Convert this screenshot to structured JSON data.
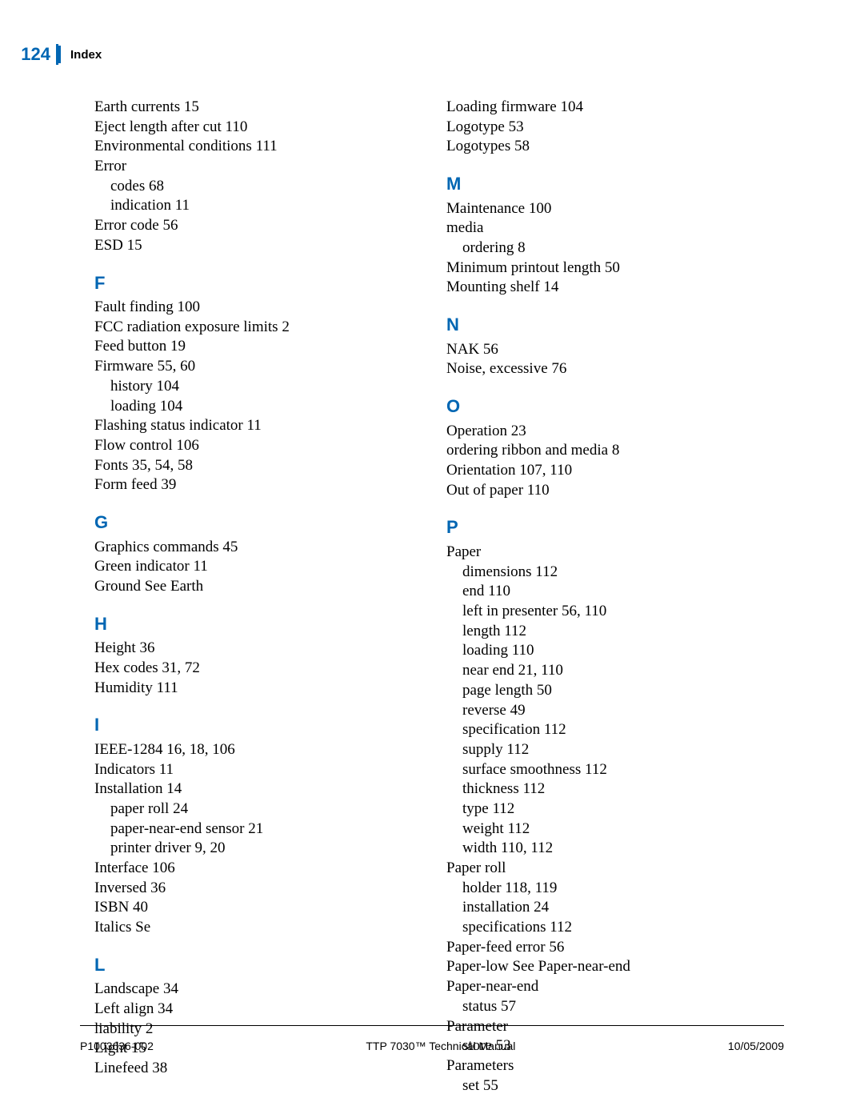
{
  "header": {
    "page_number": "124",
    "title": "Index"
  },
  "colors": {
    "brand_blue": "#0066b3",
    "text": "#000000",
    "background": "#ffffff"
  },
  "typography": {
    "body_font": "Times New Roman serif",
    "heading_font": "Arial sans-serif",
    "body_size_pt": 14,
    "letter_size_pt": 16,
    "header_page_size_pt": 16,
    "header_title_size_pt": 11,
    "footer_size_pt": 10
  },
  "left_column": [
    {
      "type": "entry",
      "text": "Earth currents 15"
    },
    {
      "type": "entry",
      "text": "Eject length after cut 110"
    },
    {
      "type": "entry",
      "text": "Environmental conditions 111"
    },
    {
      "type": "entry",
      "text": "Error"
    },
    {
      "type": "sub",
      "text": "codes 68"
    },
    {
      "type": "sub",
      "text": "indication 11"
    },
    {
      "type": "entry",
      "text": "Error code 56"
    },
    {
      "type": "entry",
      "text": "ESD 15"
    },
    {
      "type": "letter",
      "text": "F"
    },
    {
      "type": "entry",
      "text": "Fault finding 100"
    },
    {
      "type": "entry",
      "text": "FCC radiation exposure limits 2"
    },
    {
      "type": "entry",
      "text": "Feed button 19"
    },
    {
      "type": "entry",
      "text": "Firmware 55, 60"
    },
    {
      "type": "sub",
      "text": "history 104"
    },
    {
      "type": "sub",
      "text": "loading 104"
    },
    {
      "type": "entry",
      "text": "Flashing status indicator 11"
    },
    {
      "type": "entry",
      "text": "Flow control 106"
    },
    {
      "type": "entry",
      "text": "Fonts 35, 54, 58"
    },
    {
      "type": "entry",
      "text": "Form feed 39"
    },
    {
      "type": "letter",
      "text": "G"
    },
    {
      "type": "entry",
      "text": "Graphics commands 45"
    },
    {
      "type": "entry",
      "text": "Green indicator 11"
    },
    {
      "type": "entry",
      "text": "Ground See Earth"
    },
    {
      "type": "letter",
      "text": "H"
    },
    {
      "type": "entry",
      "text": "Height 36"
    },
    {
      "type": "entry",
      "text": "Hex codes 31, 72"
    },
    {
      "type": "entry",
      "text": "Humidity 111"
    },
    {
      "type": "letter",
      "text": "I"
    },
    {
      "type": "entry",
      "text": "IEEE-1284 16, 18, 106"
    },
    {
      "type": "entry",
      "text": "Indicators 11"
    },
    {
      "type": "entry",
      "text": "Installation 14"
    },
    {
      "type": "sub",
      "text": "paper roll 24"
    },
    {
      "type": "sub",
      "text": "paper-near-end sensor 21"
    },
    {
      "type": "sub",
      "text": "printer driver 9, 20"
    },
    {
      "type": "entry",
      "text": "Interface 106"
    },
    {
      "type": "entry",
      "text": "Inversed 36"
    },
    {
      "type": "entry",
      "text": "ISBN 40"
    },
    {
      "type": "entry",
      "text": "Italics Se"
    },
    {
      "type": "letter",
      "text": "L"
    },
    {
      "type": "entry",
      "text": "Landscape 34"
    },
    {
      "type": "entry",
      "text": "Left align 34"
    },
    {
      "type": "entry",
      "text": "liability 2"
    },
    {
      "type": "entry",
      "text": "Light 15"
    },
    {
      "type": "entry",
      "text": "Linefeed 38"
    }
  ],
  "right_column": [
    {
      "type": "entry",
      "text": "Loading firmware 104"
    },
    {
      "type": "entry",
      "text": "Logotype 53"
    },
    {
      "type": "entry",
      "text": "Logotypes 58"
    },
    {
      "type": "letter",
      "text": "M"
    },
    {
      "type": "entry",
      "text": "Maintenance 100"
    },
    {
      "type": "entry",
      "text": "media"
    },
    {
      "type": "sub",
      "text": "ordering 8"
    },
    {
      "type": "entry",
      "text": "Minimum printout length 50"
    },
    {
      "type": "entry",
      "text": "Mounting shelf 14"
    },
    {
      "type": "letter",
      "text": "N"
    },
    {
      "type": "entry",
      "text": "NAK 56"
    },
    {
      "type": "entry",
      "text": "Noise, excessive 76"
    },
    {
      "type": "letter",
      "text": "O"
    },
    {
      "type": "entry",
      "text": "Operation 23"
    },
    {
      "type": "entry",
      "text": "ordering ribbon and media 8"
    },
    {
      "type": "entry",
      "text": "Orientation 107, 110"
    },
    {
      "type": "entry",
      "text": "Out of paper 110"
    },
    {
      "type": "letter",
      "text": "P"
    },
    {
      "type": "entry",
      "text": "Paper"
    },
    {
      "type": "sub",
      "text": "dimensions 112"
    },
    {
      "type": "sub",
      "text": "end 110"
    },
    {
      "type": "sub",
      "text": "left in presenter 56, 110"
    },
    {
      "type": "sub",
      "text": "length 112"
    },
    {
      "type": "sub",
      "text": "loading 110"
    },
    {
      "type": "sub",
      "text": "near end 21, 110"
    },
    {
      "type": "sub",
      "text": "page length 50"
    },
    {
      "type": "sub",
      "text": "reverse 49"
    },
    {
      "type": "sub",
      "text": "specification 112"
    },
    {
      "type": "sub",
      "text": "supply 112"
    },
    {
      "type": "sub",
      "text": "surface smoothness 112"
    },
    {
      "type": "sub",
      "text": "thickness 112"
    },
    {
      "type": "sub",
      "text": "type 112"
    },
    {
      "type": "sub",
      "text": "weight 112"
    },
    {
      "type": "sub",
      "text": "width 110, 112"
    },
    {
      "type": "entry",
      "text": "Paper roll"
    },
    {
      "type": "sub",
      "text": "holder 118, 119"
    },
    {
      "type": "sub",
      "text": "installation 24"
    },
    {
      "type": "sub",
      "text": "specifications 112"
    },
    {
      "type": "entry",
      "text": "Paper-feed error 56"
    },
    {
      "type": "entry",
      "text": "Paper-low See Paper-near-end"
    },
    {
      "type": "entry",
      "text": "Paper-near-end"
    },
    {
      "type": "sub",
      "text": "status 57"
    },
    {
      "type": "entry",
      "text": "Parameter"
    },
    {
      "type": "sub",
      "text": "store 53"
    },
    {
      "type": "entry",
      "text": "Parameters"
    },
    {
      "type": "sub",
      "text": "set 55"
    }
  ],
  "footer": {
    "left": "P1003636-002",
    "center": "TTP 7030™ Technical Manual",
    "right": "10/05/2009"
  }
}
